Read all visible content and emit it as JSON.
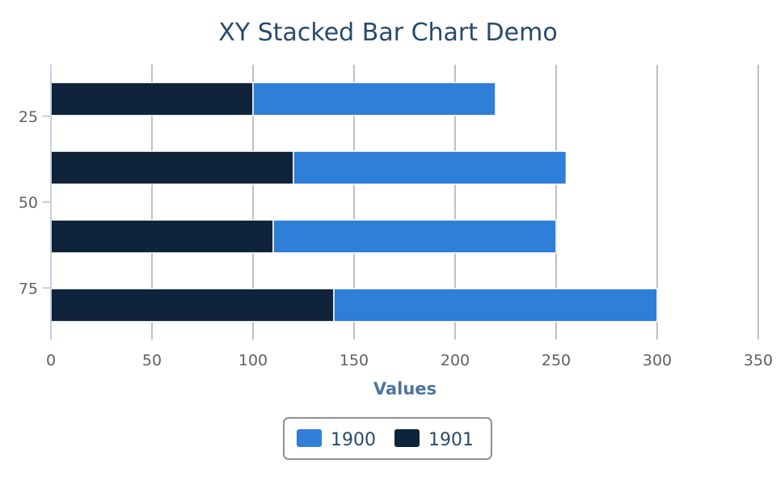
{
  "chart_data": {
    "type": "bar",
    "orientation": "horizontal",
    "stacked": true,
    "title": "XY Stacked Bar Chart Demo",
    "xlabel": "Values",
    "ylabel": "",
    "xlim": [
      0,
      350
    ],
    "x_ticks": [
      "0",
      "50",
      "100",
      "150",
      "200",
      "250",
      "300",
      "350"
    ],
    "ylim": [
      10,
      90
    ],
    "y_ticks": [
      "25",
      "50",
      "75"
    ],
    "y_positions": [
      20,
      40,
      60,
      80
    ],
    "series": [
      {
        "name": "1901",
        "color": "#0f233a",
        "values": [
          100,
          120,
          110,
          140
        ]
      },
      {
        "name": "1900",
        "color": "#2f7ed8",
        "values": [
          120,
          135,
          140,
          160
        ]
      }
    ],
    "legend": {
      "position": "bottom-center",
      "items": [
        {
          "name": "1900",
          "color": "#2f7ed8"
        },
        {
          "name": "1901",
          "color": "#0f233a"
        }
      ]
    },
    "grid": true
  }
}
